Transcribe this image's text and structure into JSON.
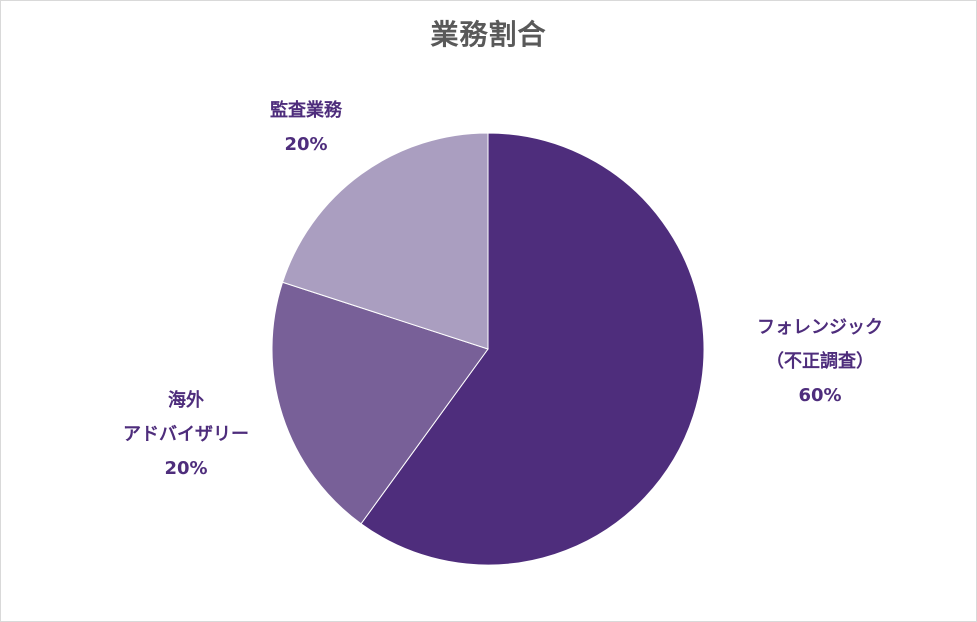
{
  "chart_data": {
    "type": "pie",
    "title": "業務割合",
    "categories": [
      "フォレンジック（不正調査）",
      "海外アドバイザリー",
      "監査業務"
    ],
    "values": [
      60,
      20,
      20
    ],
    "colors": [
      "#4e2d7c",
      "#786098",
      "#aa9ec0"
    ],
    "label_color": "#4e2d7c",
    "labels": [
      {
        "lines": [
          "フォレンジック",
          "（不正調査）",
          "60%"
        ]
      },
      {
        "lines": [
          "海外",
          "アドバイザリー",
          "20%"
        ]
      },
      {
        "lines": [
          "監査業務",
          "20%"
        ]
      }
    ],
    "start_angle": "12 o'clock",
    "direction": "clockwise"
  }
}
